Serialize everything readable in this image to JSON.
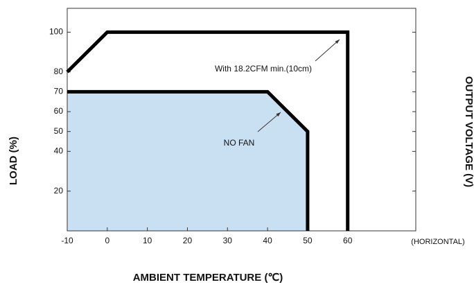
{
  "chart_data": {
    "type": "line",
    "x_label": "AMBIENT TEMPERATURE (℃)",
    "y_label": "LOAD (%)",
    "y2_label": "OUTPUT VOLTAGE (V)",
    "annotations": [
      "(HORIZONTAL)"
    ],
    "xlim": [
      -10,
      77
    ],
    "xticks": [
      -10,
      0,
      10,
      20,
      30,
      40,
      50,
      60
    ],
    "ylim": [
      0,
      112
    ],
    "yticks": [
      20,
      40,
      50,
      60,
      70,
      80,
      100
    ],
    "series": [
      {
        "name": "With 18.2CFM min.(10cm)",
        "color": "#000000",
        "fill": null,
        "x": [
          -10,
          0,
          60,
          60
        ],
        "values": [
          80,
          100,
          100,
          0
        ]
      },
      {
        "name": "NO FAN",
        "color": "#000000",
        "fill": "#c9dff2",
        "x": [
          -10,
          40,
          50,
          50
        ],
        "values": [
          70,
          70,
          50,
          0
        ]
      }
    ]
  }
}
